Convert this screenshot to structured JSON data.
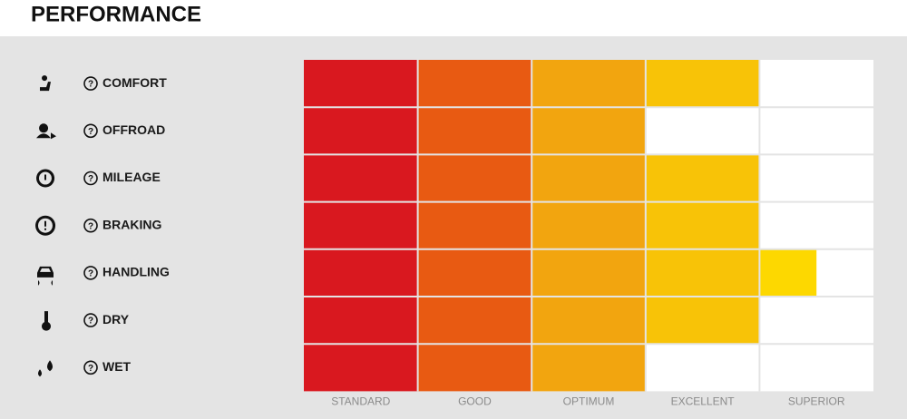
{
  "chart_data": {
    "type": "bar",
    "orientation": "horizontal",
    "title": "PERFORMANCE",
    "categories": [
      "COMFORT",
      "OFFROAD",
      "MILEAGE",
      "BRAKING",
      "HANDLING",
      "DRY",
      "WET"
    ],
    "values": [
      4,
      3,
      4,
      4,
      4.5,
      4,
      3
    ],
    "xlim": [
      0,
      5
    ],
    "xticks": [
      {
        "value": 0.5,
        "label": "STANDARD"
      },
      {
        "value": 1.5,
        "label": "GOOD"
      },
      {
        "value": 2.5,
        "label": "OPTIMUM"
      },
      {
        "value": 3.5,
        "label": "EXCELLENT"
      },
      {
        "value": 4.5,
        "label": "SUPERIOR"
      }
    ],
    "colors": [
      "#d9181f",
      "#e85a12",
      "#f2a50f",
      "#f8c307",
      "#fdd800"
    ]
  }
}
